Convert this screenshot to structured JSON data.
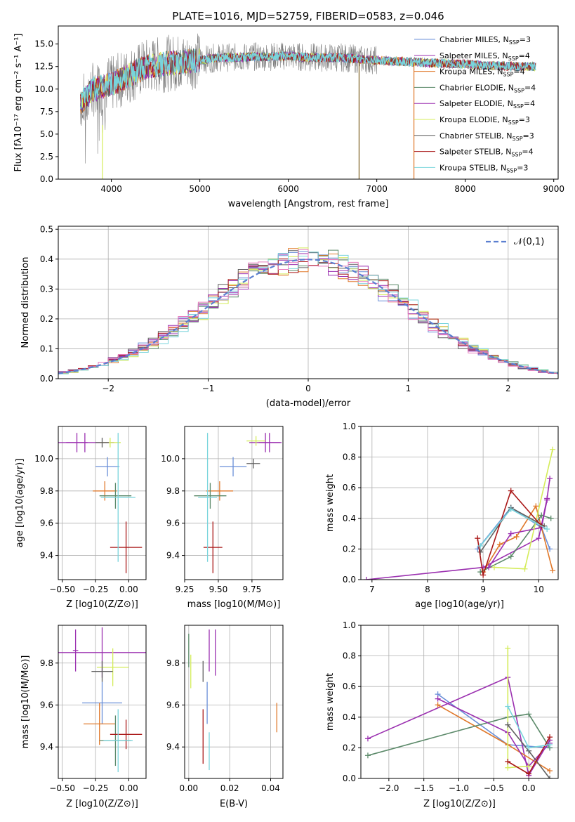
{
  "colors": [
    "#6a8fd8",
    "#9b30b0",
    "#e0782a",
    "#5c8a6a",
    "#9b2fb0",
    "#d4ec5a",
    "#606060",
    "#aa1818",
    "#78d4dc"
  ],
  "chart_data": [
    {
      "type": "line",
      "title": "PLATE=1016, MJD=52759, FIBERID=0583, z=0.046",
      "xlabel": "wavelength [Angstrom, rest frame]",
      "ylabel": "Flux [fλ10⁻¹⁷ erg cm⁻² s⁻¹ A⁻¹]",
      "xlim": [
        3400,
        9050
      ],
      "ylim": [
        0,
        17
      ],
      "xticks": [
        "4000",
        "5000",
        "6000",
        "7000",
        "8000",
        "9000"
      ],
      "yticks": [
        "0.0",
        "2.5",
        "5.0",
        "7.5",
        "10.0",
        "12.5",
        "15.0"
      ],
      "grid": false,
      "legend_position": "upper right",
      "legend": [
        {
          "label": "Chabrier MILES, N",
          "sub": "SSP",
          "eq": "=3"
        },
        {
          "label": "Salpeter MILES, N",
          "sub": "SSP",
          "eq": "=4"
        },
        {
          "label": "Kroupa MILES, N",
          "sub": "SSP",
          "eq": "=4"
        },
        {
          "label": "Chabrier ELODIE, N",
          "sub": "SSP",
          "eq": "=4"
        },
        {
          "label": "Salpeter ELODIE, N",
          "sub": "SSP",
          "eq": "=4"
        },
        {
          "label": "Kroupa ELODIE, N",
          "sub": "SSP",
          "eq": "=3"
        },
        {
          "label": "Chabrier STELIB, N",
          "sub": "SSP",
          "eq": "=3"
        },
        {
          "label": "Salpeter STELIB, N",
          "sub": "SSP",
          "eq": "=4"
        },
        {
          "label": "Kroupa STELIB, N",
          "sub": "SSP",
          "eq": "=3"
        }
      ],
      "data_flux": {
        "x": [
          3650,
          3800,
          4000,
          4200,
          4400,
          4600,
          4800,
          5000,
          5200,
          5400,
          5600,
          5800,
          6000,
          6200,
          6400,
          6600,
          6800,
          7000,
          7200,
          7400,
          7600,
          7800,
          8000,
          8200,
          8400,
          8600,
          8800
        ],
        "y": [
          8.5,
          10,
          10.5,
          11.5,
          12.5,
          12.8,
          13,
          13.2,
          13.5,
          13.5,
          13.6,
          13.6,
          13.7,
          13.5,
          13.5,
          13.5,
          13.3,
          13.2,
          13.1,
          13,
          12.9,
          12.8,
          12.8,
          12.6,
          12.6,
          12.5,
          12.5
        ]
      }
    },
    {
      "type": "histogram",
      "xlabel": "(data-model)/error",
      "ylabel": "Normed distribution",
      "xlim": [
        -2.5,
        2.5
      ],
      "ylim": [
        0,
        0.51
      ],
      "xticks": [
        "−2",
        "−1",
        "0",
        "1",
        "2"
      ],
      "yticks": [
        "0.0",
        "0.1",
        "0.2",
        "0.3",
        "0.4",
        "0.5"
      ],
      "grid": true,
      "legend_position": "upper right",
      "reference_label": "𝒩(0,1)"
    },
    {
      "type": "scatter",
      "xlabel": "Z [log10(Z/Z⊙)]",
      "ylabel": "age [log10(age/yr)]",
      "xlim": [
        -0.53,
        0.13
      ],
      "ylim": [
        9.25,
        10.2
      ],
      "xticks": [
        "−0.50",
        "−0.25",
        "0.00"
      ],
      "yticks": [
        "9.4",
        "9.6",
        "9.8",
        "10.0"
      ],
      "points": [
        {
          "x": -0.16,
          "y": 9.95,
          "xe": 0.09,
          "ye": 0.06
        },
        {
          "x": -0.33,
          "y": 10.1,
          "xe": 0.22,
          "ye": 0.06
        },
        {
          "x": -0.18,
          "y": 9.8,
          "xe": 0.09,
          "ye": 0.06
        },
        {
          "x": -0.1,
          "y": 9.77,
          "xe": 0.12,
          "ye": 0.08
        },
        {
          "x": -0.39,
          "y": 10.1,
          "xe": 0.08,
          "ye": 0.06
        },
        {
          "x": -0.14,
          "y": 10.1,
          "xe": 0.08,
          "ye": 0.03
        },
        {
          "x": -0.2,
          "y": 10.1,
          "xe": 0.05,
          "ye": 0.03
        },
        {
          "x": -0.02,
          "y": 9.45,
          "xe": 0.12,
          "ye": 0.16
        },
        {
          "x": -0.08,
          "y": 9.76,
          "xe": 0.13,
          "ye": 0.4
        }
      ]
    },
    {
      "type": "scatter",
      "xlabel": "mass [log10(M/M⊙)]",
      "ylabel": "",
      "xlim": [
        9.25,
        9.98
      ],
      "ylim": [
        9.25,
        10.2
      ],
      "xticks": [
        "9.25",
        "9.50",
        "9.75"
      ],
      "yticks": [
        "9.4",
        "9.6",
        "9.8",
        "10.0"
      ],
      "points": [
        {
          "x": 9.61,
          "y": 9.95,
          "xe": 0.1,
          "ye": 0.06
        },
        {
          "x": 9.85,
          "y": 10.1,
          "xe": 0.12,
          "ye": 0.06
        },
        {
          "x": 9.51,
          "y": 9.8,
          "xe": 0.1,
          "ye": 0.06
        },
        {
          "x": 9.44,
          "y": 9.77,
          "xe": 0.12,
          "ye": 0.08
        },
        {
          "x": 9.88,
          "y": 10.1,
          "xe": 0.08,
          "ye": 0.06
        },
        {
          "x": 9.78,
          "y": 10.11,
          "xe": 0.07,
          "ye": 0.03
        },
        {
          "x": 9.76,
          "y": 9.97,
          "xe": 0.05,
          "ye": 0.03
        },
        {
          "x": 9.46,
          "y": 9.45,
          "xe": 0.07,
          "ye": 0.16
        },
        {
          "x": 9.42,
          "y": 9.76,
          "xe": 0.07,
          "ye": 0.4
        }
      ]
    },
    {
      "type": "line",
      "xlabel": "age [log10(age/yr)]",
      "ylabel": "mass weight",
      "xlim": [
        6.8,
        10.35
      ],
      "ylim": [
        0,
        1.0
      ],
      "xticks": [
        "7",
        "8",
        "9",
        "10"
      ],
      "yticks": [
        "0.0",
        "0.2",
        "0.4",
        "0.6",
        "0.8",
        "1.0"
      ],
      "series": [
        {
          "x": [
            8.9,
            9.5,
            10.05,
            10.2
          ],
          "y": [
            0.2,
            0.47,
            0.34,
            0.2
          ]
        },
        {
          "x": [
            6.9,
            9.0,
            10.0,
            10.15,
            10.2
          ],
          "y": [
            0.0,
            0.08,
            0.27,
            0.53,
            0.66
          ]
        },
        {
          "x": [
            9.0,
            9.3,
            9.6,
            9.95,
            10.25
          ],
          "y": [
            0.05,
            0.23,
            0.28,
            0.48,
            0.06
          ]
        },
        {
          "x": [
            8.95,
            9.5,
            10.05,
            10.22
          ],
          "y": [
            0.05,
            0.15,
            0.42,
            0.4
          ]
        },
        {
          "x": [
            9.1,
            9.5,
            10.05,
            10.15
          ],
          "y": [
            0.08,
            0.3,
            0.34,
            0.52
          ]
        },
        {
          "x": [
            9.2,
            9.75,
            10.25
          ],
          "y": [
            0.08,
            0.07,
            0.85
          ]
        },
        {
          "x": [
            8.95,
            9.5,
            10.1
          ],
          "y": [
            0.18,
            0.47,
            0.35
          ]
        },
        {
          "x": [
            8.9,
            9.0,
            9.5,
            10.05
          ],
          "y": [
            0.27,
            0.03,
            0.58,
            0.35
          ]
        },
        {
          "x": [
            8.95,
            9.5,
            10.15
          ],
          "y": [
            0.22,
            0.46,
            0.33
          ]
        }
      ]
    },
    {
      "type": "scatter",
      "xlabel": "Z [log10(Z/Z⊙)]",
      "ylabel": "mass [log10(M/M⊙)]",
      "xlim": [
        -0.53,
        0.13
      ],
      "ylim": [
        9.25,
        9.98
      ],
      "xticks": [
        "−0.50",
        "−0.25",
        "0.00"
      ],
      "yticks": [
        "9.4",
        "9.6",
        "9.8"
      ],
      "points": [
        {
          "x": -0.2,
          "y": 9.61,
          "xe": 0.15,
          "ye": 0.1
        },
        {
          "x": -0.2,
          "y": 9.85,
          "xe": 0.33,
          "ye": 0.12
        },
        {
          "x": -0.22,
          "y": 9.51,
          "xe": 0.12,
          "ye": 0.1
        },
        {
          "x": -0.1,
          "y": 9.43,
          "xe": 0.12,
          "ye": 0.12
        },
        {
          "x": -0.4,
          "y": 9.86,
          "xe": 0.02,
          "ye": 0.1
        },
        {
          "x": -0.12,
          "y": 9.78,
          "xe": 0.12,
          "ye": 0.09
        },
        {
          "x": -0.2,
          "y": 9.76,
          "xe": 0.08,
          "ye": 0.05
        },
        {
          "x": -0.02,
          "y": 9.46,
          "xe": 0.12,
          "ye": 0.07
        },
        {
          "x": -0.08,
          "y": 9.43,
          "xe": 0.11,
          "ye": 0.15
        }
      ]
    },
    {
      "type": "scatter",
      "xlabel": "E(B-V)",
      "ylabel": "",
      "xlim": [
        -0.002,
        0.046
      ],
      "ylim": [
        9.25,
        9.98
      ],
      "xticks": [
        "0.00",
        "0.02",
        "0.04"
      ],
      "yticks": [
        "9.4",
        "9.6",
        "9.8"
      ],
      "points": [
        {
          "x": 0.009,
          "y": 9.61,
          "xe": 0,
          "ye": 0.1
        },
        {
          "x": 0.013,
          "y": 9.85,
          "xe": 0,
          "ye": 0.11
        },
        {
          "x": 0.043,
          "y": 9.54,
          "xe": 0,
          "ye": 0.07
        },
        {
          "x": 0.0,
          "y": 9.86,
          "xe": 0,
          "ye": 0.08
        },
        {
          "x": 0.01,
          "y": 9.86,
          "xe": 0,
          "ye": 0.1
        },
        {
          "x": 0.001,
          "y": 9.76,
          "xe": 0,
          "ye": 0.08
        },
        {
          "x": 0.007,
          "y": 9.76,
          "xe": 0,
          "ye": 0.05
        },
        {
          "x": 0.007,
          "y": 9.45,
          "xe": 0,
          "ye": 0.13
        },
        {
          "x": 0.01,
          "y": 9.38,
          "xe": 0,
          "ye": 0.09
        }
      ]
    },
    {
      "type": "line",
      "xlabel": "Z [log10(Z/Z⊙)]",
      "ylabel": "mass weight",
      "xlim": [
        -2.4,
        0.42
      ],
      "ylim": [
        0,
        1.0
      ],
      "xticks": [
        "−2.0",
        "−1.5",
        "−1.0",
        "−0.5",
        "0.0"
      ],
      "yticks": [
        "0.0",
        "0.2",
        "0.4",
        "0.6",
        "0.8",
        "1.0"
      ],
      "series": [
        {
          "x": [
            -1.3,
            -0.3,
            0.3
          ],
          "y": [
            0.55,
            0.22,
            0.2
          ]
        },
        {
          "x": [
            -2.3,
            -0.3,
            0.0,
            0.3
          ],
          "y": [
            0.26,
            0.66,
            0.02,
            0.25
          ]
        },
        {
          "x": [
            -1.3,
            -0.3,
            0.3
          ],
          "y": [
            0.48,
            0.22,
            0.05
          ]
        },
        {
          "x": [
            -2.3,
            -0.3,
            0.0,
            0.3
          ],
          "y": [
            0.15,
            0.4,
            0.42,
            0.2
          ]
        },
        {
          "x": [
            -1.3,
            -0.3,
            0.0,
            0.3
          ],
          "y": [
            0.52,
            0.3,
            0.08,
            0.23
          ]
        },
        {
          "x": [
            -0.3,
            -0.3,
            0.0
          ],
          "y": [
            0.85,
            0.07,
            0.08
          ]
        },
        {
          "x": [
            -0.3,
            0.0,
            0.3
          ],
          "y": [
            0.35,
            0.18,
            0.0
          ]
        },
        {
          "x": [
            -0.3,
            0.0,
            0.3
          ],
          "y": [
            0.11,
            0.03,
            0.27
          ]
        },
        {
          "x": [
            -0.3,
            0.0,
            0.3
          ],
          "y": [
            0.47,
            0.2,
            0.22
          ]
        }
      ]
    }
  ]
}
